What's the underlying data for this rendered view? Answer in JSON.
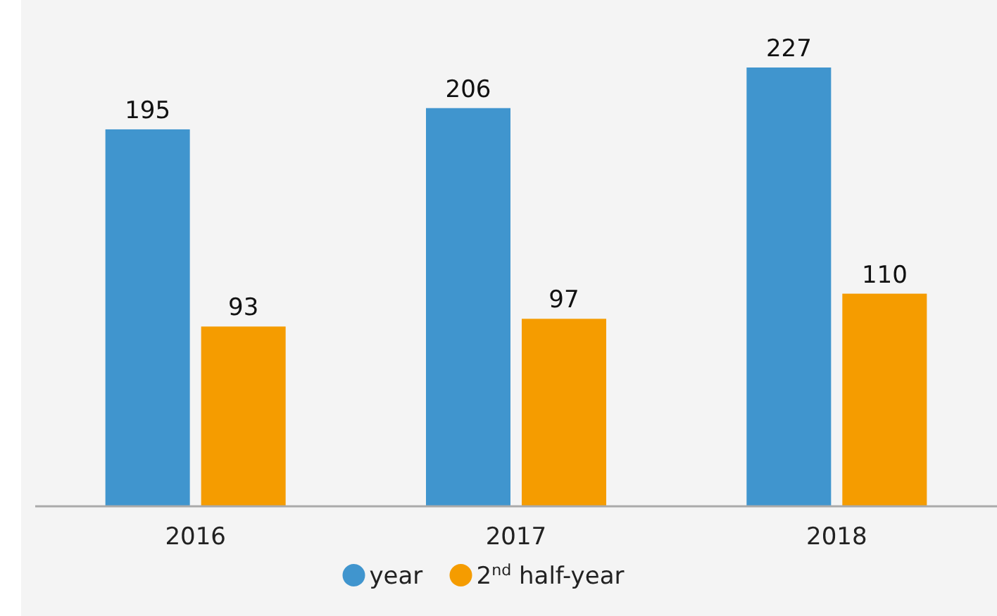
{
  "chart_data": {
    "type": "bar",
    "categories": [
      "2016",
      "2017",
      "2018"
    ],
    "series": [
      {
        "name": "year",
        "color": "#4095ce",
        "values": [
          195,
          206,
          227
        ]
      },
      {
        "name": "2$^{nd}$ half-year",
        "color": "#f59c00",
        "values": [
          93,
          97,
          110
        ]
      }
    ],
    "data_labels": true,
    "legend": "bottom",
    "grid": false
  }
}
